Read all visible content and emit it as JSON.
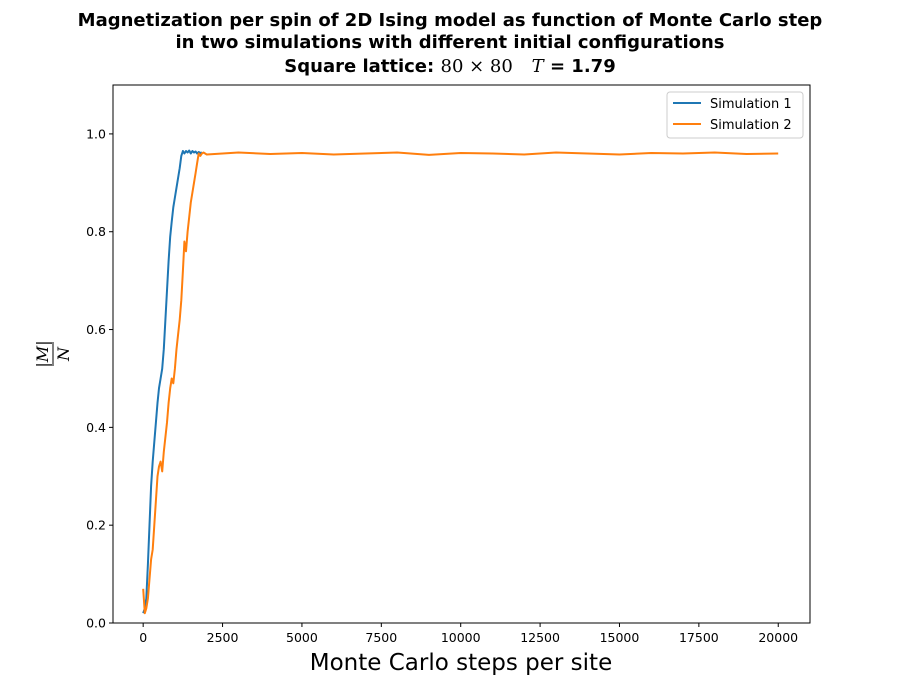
{
  "chart_data": {
    "type": "line",
    "title": {
      "line1": "Magnetization per spin of 2D Ising model as function of Monte Carlo step",
      "line2": "in two simulations with different initial configurations",
      "line3_prefix": "Square lattice:",
      "line3_lattice": "80 × 80",
      "line3_T_symbol": "T",
      "line3_T_value": "= 1.79"
    },
    "xlabel": "Monte Carlo steps per site",
    "ylabel_num": "|M|",
    "ylabel_den": "N",
    "xlim": [
      -950,
      21000
    ],
    "ylim": [
      0.0,
      1.1
    ],
    "xticks": [
      0,
      2500,
      5000,
      7500,
      10000,
      12500,
      15000,
      17500,
      20000
    ],
    "yticks": [
      0.0,
      0.2,
      0.4,
      0.6,
      0.8,
      1.0
    ],
    "grid": false,
    "legend_position": "top-right",
    "series": [
      {
        "name": "Simulation 1",
        "color": "#1f77b4",
        "x": [
          0,
          50,
          100,
          150,
          200,
          250,
          300,
          350,
          400,
          450,
          500,
          550,
          600,
          650,
          700,
          750,
          800,
          850,
          900,
          950,
          1000,
          1050,
          1100,
          1150,
          1200,
          1250,
          1300,
          1350,
          1400,
          1450,
          1500,
          1550,
          1600,
          1650,
          1700,
          1750,
          1800,
          1850
        ],
        "y": [
          0.02,
          0.03,
          0.05,
          0.12,
          0.2,
          0.28,
          0.33,
          0.37,
          0.41,
          0.45,
          0.48,
          0.5,
          0.52,
          0.56,
          0.62,
          0.68,
          0.74,
          0.79,
          0.82,
          0.85,
          0.87,
          0.89,
          0.91,
          0.93,
          0.955,
          0.965,
          0.96,
          0.965,
          0.962,
          0.966,
          0.96,
          0.965,
          0.962,
          0.964,
          0.96,
          0.963,
          0.961,
          0.962
        ]
      },
      {
        "name": "Simulation 2",
        "color": "#ff7f0e",
        "x": [
          0,
          50,
          100,
          150,
          200,
          250,
          300,
          350,
          400,
          450,
          500,
          550,
          600,
          650,
          700,
          750,
          800,
          850,
          900,
          950,
          1000,
          1050,
          1100,
          1150,
          1200,
          1250,
          1300,
          1350,
          1400,
          1450,
          1500,
          1550,
          1600,
          1650,
          1700,
          1750,
          1800,
          1850,
          1900,
          2000,
          2500,
          3000,
          4000,
          5000,
          6000,
          7000,
          8000,
          9000,
          10000,
          11000,
          12000,
          13000,
          14000,
          15000,
          16000,
          17000,
          18000,
          19000,
          20000
        ],
        "y": [
          0.07,
          0.02,
          0.03,
          0.05,
          0.09,
          0.13,
          0.15,
          0.2,
          0.25,
          0.3,
          0.32,
          0.33,
          0.31,
          0.35,
          0.38,
          0.41,
          0.45,
          0.48,
          0.5,
          0.49,
          0.52,
          0.56,
          0.59,
          0.62,
          0.66,
          0.72,
          0.78,
          0.76,
          0.8,
          0.83,
          0.86,
          0.88,
          0.9,
          0.92,
          0.94,
          0.96,
          0.955,
          0.96,
          0.962,
          0.958,
          0.96,
          0.962,
          0.959,
          0.961,
          0.958,
          0.96,
          0.962,
          0.957,
          0.961,
          0.96,
          0.958,
          0.962,
          0.96,
          0.958,
          0.961,
          0.96,
          0.962,
          0.959,
          0.96
        ]
      }
    ]
  }
}
